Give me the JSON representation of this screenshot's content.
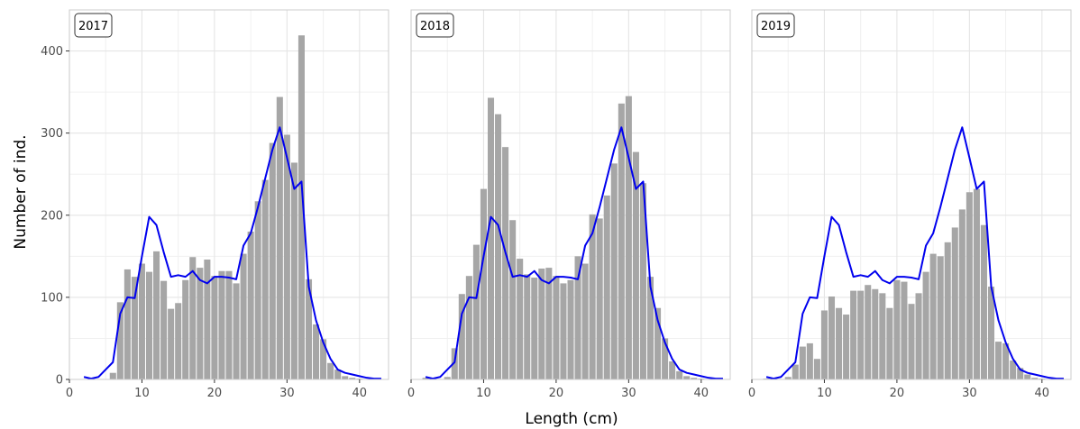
{
  "chart_data": {
    "type": "bar",
    "xlabel": "Length (cm)",
    "ylabel": "Number of ind.",
    "xlim": [
      0,
      44
    ],
    "ylim": [
      0,
      450
    ],
    "x_ticks": [
      0,
      10,
      20,
      30,
      40
    ],
    "y_ticks": [
      0,
      100,
      200,
      300,
      400
    ],
    "grid": true,
    "colors": {
      "bars": "#a6a6a6",
      "line": "#0000ee",
      "grid": "#e5e5e5",
      "panel_border": "#cccccc"
    },
    "x": [
      2,
      3,
      4,
      5,
      6,
      7,
      8,
      9,
      10,
      11,
      12,
      13,
      14,
      15,
      16,
      17,
      18,
      19,
      20,
      21,
      22,
      23,
      24,
      25,
      26,
      27,
      28,
      29,
      30,
      31,
      32,
      33,
      34,
      35,
      36,
      37,
      38,
      39,
      40,
      41,
      42,
      43
    ],
    "reference_line": [
      3,
      1,
      3,
      12,
      21,
      80,
      100,
      99,
      150,
      198,
      188,
      155,
      125,
      127,
      125,
      132,
      121,
      117,
      125,
      125,
      124,
      122,
      163,
      178,
      210,
      245,
      280,
      307,
      270,
      232,
      241,
      113,
      72,
      45,
      25,
      12,
      8,
      6,
      4,
      2,
      1,
      1
    ],
    "panels": [
      {
        "label": "2017",
        "values": [
          0,
          0,
          0,
          0,
          8,
          94,
          134,
          125,
          141,
          131,
          156,
          120,
          86,
          93,
          121,
          149,
          136,
          146,
          126,
          132,
          132,
          117,
          153,
          180,
          217,
          243,
          288,
          344,
          298,
          264,
          419,
          122,
          67,
          49,
          20,
          12,
          4,
          2,
          1,
          0,
          0,
          0
        ]
      },
      {
        "label": "2018",
        "values": [
          2,
          0,
          0,
          3,
          38,
          104,
          126,
          164,
          232,
          343,
          323,
          283,
          194,
          147,
          128,
          124,
          135,
          136,
          126,
          117,
          121,
          150,
          141,
          201,
          196,
          224,
          263,
          336,
          345,
          277,
          239,
          125,
          87,
          50,
          22,
          10,
          4,
          2,
          1,
          0,
          0,
          0
        ]
      },
      {
        "label": "2019",
        "values": [
          1,
          0,
          0,
          3,
          18,
          40,
          44,
          25,
          84,
          101,
          87,
          79,
          108,
          108,
          115,
          110,
          105,
          87,
          121,
          119,
          92,
          105,
          131,
          153,
          150,
          167,
          185,
          207,
          228,
          232,
          188,
          113,
          46,
          44,
          23,
          14,
          6,
          2,
          1,
          0,
          0,
          0
        ]
      }
    ]
  }
}
